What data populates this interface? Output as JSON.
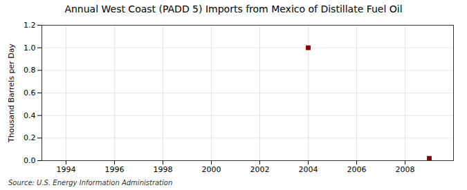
{
  "chart_data": {
    "type": "scatter",
    "title": "Annual West Coast (PADD 5) Imports from Mexico of Distillate Fuel Oil",
    "ylabel": "Thousand Barrels per Day",
    "source": "Source: U.S. Energy Information Administration",
    "x": [
      2004,
      2009
    ],
    "values": [
      1.0,
      0.02
    ],
    "color": "#8b0000",
    "marker": "square",
    "xlim": [
      1993,
      2010
    ],
    "ylim": [
      0,
      1.2
    ],
    "xticks": [
      1994,
      1996,
      1998,
      2000,
      2002,
      2004,
      2006,
      2008
    ],
    "yticks": [
      {
        "value": 0,
        "label": "0.0"
      },
      0.2,
      0.4,
      0.6,
      0.8,
      {
        "value": 1,
        "label": "1.0"
      },
      1.2
    ],
    "grid": true
  }
}
